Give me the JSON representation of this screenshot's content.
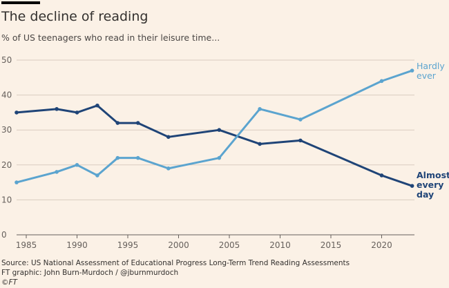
{
  "header": {
    "title": "The decline of reading",
    "subtitle": "% of US teenagers who read in their leisure time..."
  },
  "footer": {
    "source": "Source: US National Assessment of Educational Progress Long-Term Trend Reading Assessments",
    "credit": "FT graphic: John Burn-Murdoch / @jburnmurdoch",
    "copyright": "©FT"
  },
  "chart_data": {
    "type": "line",
    "title": "The decline of reading",
    "subtitle": "% of US teenagers who read in their leisure time...",
    "xlabel": "",
    "ylabel": "",
    "xlim": [
      1984,
      2024
    ],
    "ylim": [
      0,
      50
    ],
    "x_ticks": [
      1985,
      1990,
      1995,
      2000,
      2005,
      2010,
      2015,
      2020
    ],
    "y_ticks": [
      0,
      10,
      20,
      30,
      40,
      50
    ],
    "grid": true,
    "legend": "direct labels at right end of lines",
    "x": [
      1984,
      1988,
      1990,
      1992,
      1994,
      1996,
      1999,
      2004,
      2008,
      2012,
      2020,
      2023
    ],
    "series": [
      {
        "name": "Almost every day",
        "label_lines": [
          "Almost",
          "every",
          "day"
        ],
        "color": "#1f4477",
        "values": [
          35,
          36,
          35,
          37,
          32,
          32,
          28,
          30,
          26,
          27,
          17,
          14
        ]
      },
      {
        "name": "Hardly ever",
        "label_lines": [
          "Hardly",
          "ever"
        ],
        "color": "#5ba4cf",
        "values": [
          15,
          18,
          20,
          17,
          22,
          22,
          19,
          22,
          36,
          33,
          44,
          47
        ]
      }
    ]
  },
  "colors": {
    "background": "#fbf1e6",
    "gridline": "#d9ccc0",
    "axis": "#66605c",
    "text": "#33302e"
  }
}
